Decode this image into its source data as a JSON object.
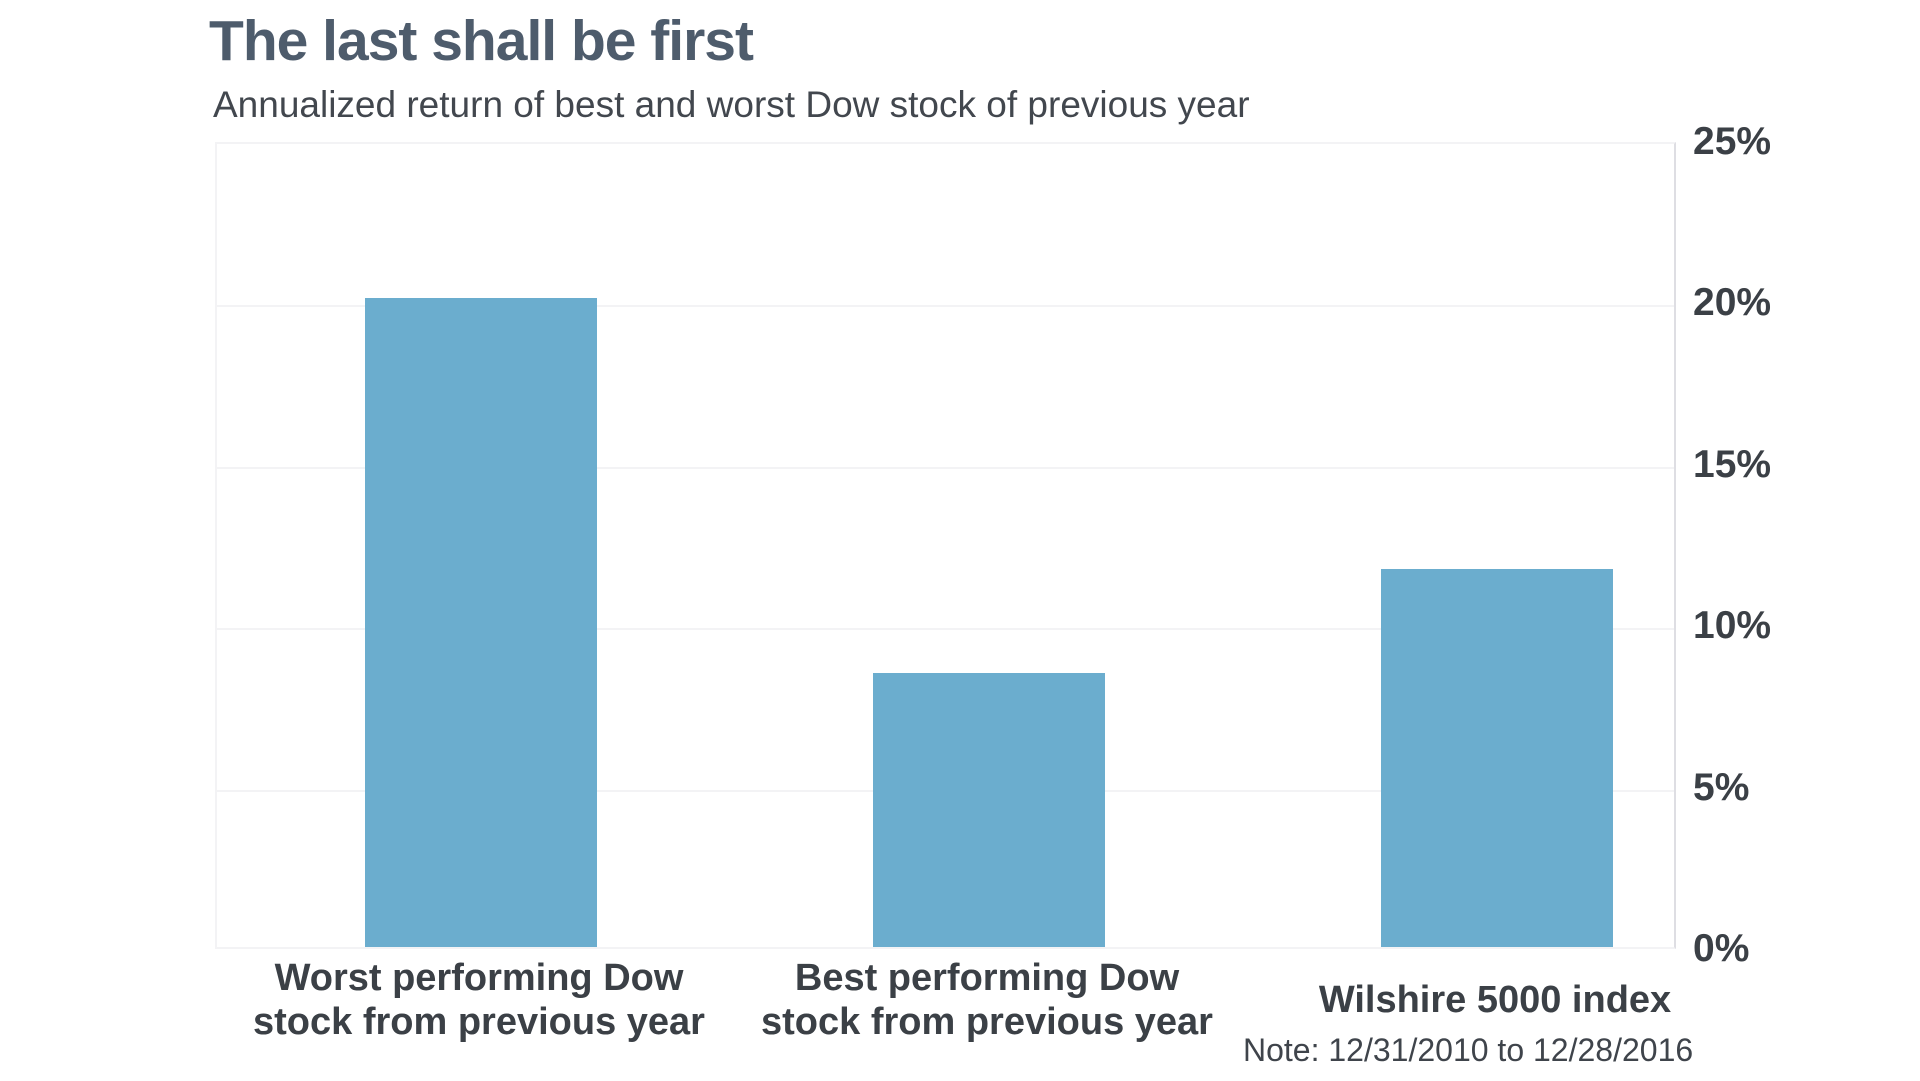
{
  "chart_data": {
    "type": "bar",
    "title": "The last shall be first",
    "subtitle": "Annualized return of best and worst Dow stock of previous year",
    "categories": [
      "Worst performing Dow\nstock from previous year",
      "Best performing Dow\nstock from previous year",
      "Wilshire 5000 index"
    ],
    "values": [
      20.1,
      8.5,
      11.7
    ],
    "unit": "%",
    "xlabel": "",
    "ylabel": "",
    "ylim": [
      0,
      25
    ],
    "yticks": [
      {
        "value": 0,
        "label": "0%"
      },
      {
        "value": 5,
        "label": "5%"
      },
      {
        "value": 10,
        "label": "10%"
      },
      {
        "value": 15,
        "label": "15%"
      },
      {
        "value": 20,
        "label": "20%"
      },
      {
        "value": 25,
        "label": "25%"
      }
    ],
    "axis_side": "right",
    "grid": "horizontal",
    "legend": false,
    "note": "Note: 12/31/2010 to 12/28/2016",
    "colors": {
      "bar": "#6badce",
      "title": "#4e5c6c",
      "subtitle": "#42474e",
      "label": "#3b4046",
      "note": "#3f444b",
      "grid": "#f3f3f5",
      "axis": "#dedee3",
      "plot_background": "#ffffff"
    }
  }
}
